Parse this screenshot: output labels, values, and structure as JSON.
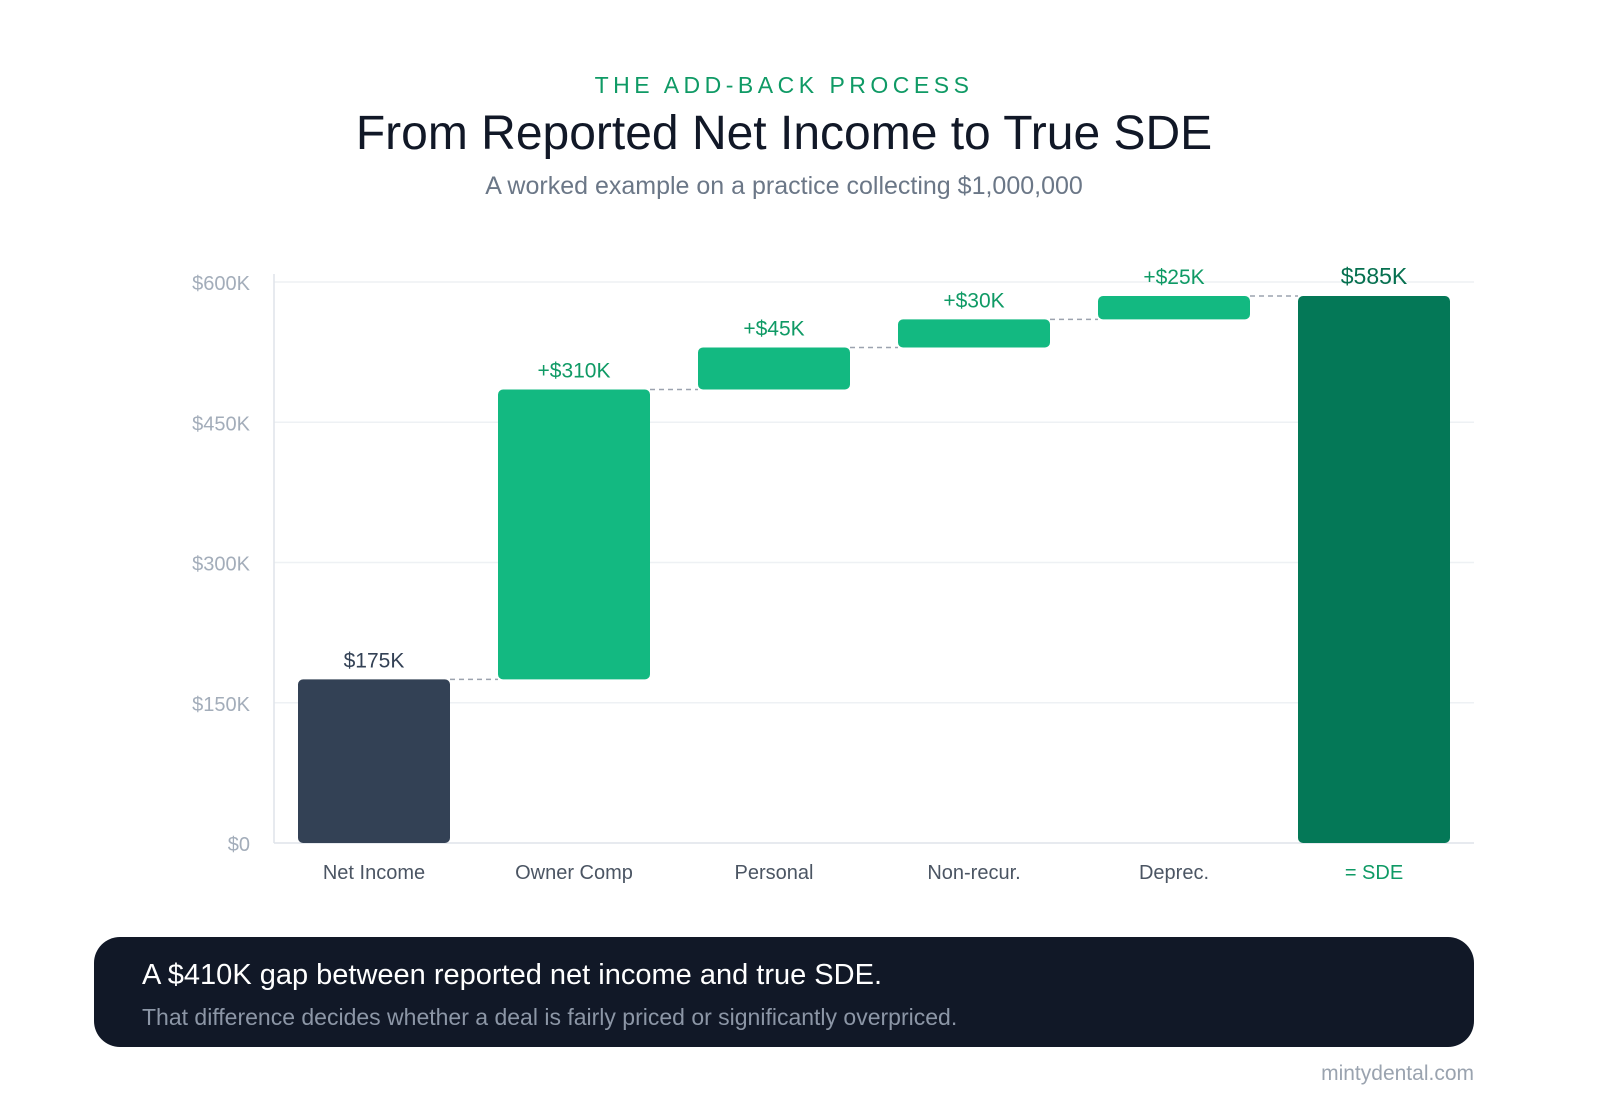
{
  "header": {
    "eyebrow": "THE ADD-BACK PROCESS",
    "title": "From Reported Net Income to True SDE",
    "subtitle": "A worked example on a practice collecting $1,000,000"
  },
  "chart_data": {
    "type": "bar",
    "subtype": "waterfall",
    "categories": [
      "Net Income",
      "Owner Comp",
      "Personal",
      "Non-recur.",
      "Deprec.",
      "= SDE"
    ],
    "values": [
      175,
      310,
      45,
      30,
      25,
      585
    ],
    "kinds": [
      "start",
      "delta",
      "delta",
      "delta",
      "delta",
      "total"
    ],
    "value_labels": [
      "$175K",
      "+$310K",
      "+$45K",
      "+$30K",
      "+$25K",
      "$585K"
    ],
    "unit": "thousands USD",
    "ylim": [
      0,
      600
    ],
    "yticks": [
      0,
      150,
      300,
      450,
      600
    ],
    "ytick_labels": [
      "$0",
      "$150K",
      "$300K",
      "$450K",
      "$600K"
    ],
    "grid": true,
    "colors": {
      "start": "#334155",
      "delta": "#13b981",
      "total": "#047857",
      "start_label": "#334155",
      "delta_label": "#0f9a65",
      "total_label": "#06704f",
      "category_label": "#4b5563",
      "total_category_label": "#0f9a65",
      "tick_label": "#a3adba",
      "grid": "#eef1f4",
      "axis": "#dfe4ea",
      "connector": "#9ca3af"
    }
  },
  "callout": {
    "headline": "A $410K gap between reported net income and true SDE.",
    "sub": "That difference decides whether a deal is fairly priced or significantly overpriced."
  },
  "footer": {
    "site": "mintydental.com"
  }
}
